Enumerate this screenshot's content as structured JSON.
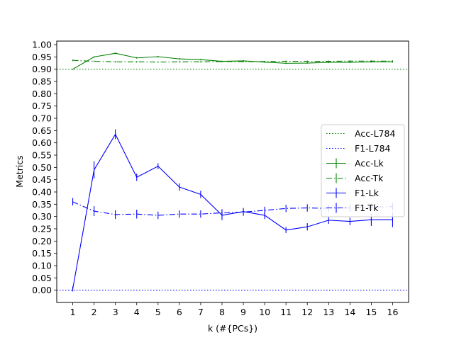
{
  "chart_data": {
    "type": "line",
    "xlabel": "k (#{PCs})",
    "ylabel": "Metrics",
    "x": [
      1,
      2,
      3,
      4,
      5,
      6,
      7,
      8,
      9,
      10,
      11,
      12,
      13,
      14,
      15,
      16
    ],
    "xlim": [
      0.25,
      16.75
    ],
    "ylim": [
      -0.05,
      1.0145
    ],
    "xticks": [
      "1",
      "2",
      "3",
      "4",
      "5",
      "6",
      "7",
      "8",
      "9",
      "10",
      "11",
      "12",
      "13",
      "14",
      "15",
      "16"
    ],
    "yticks": [
      "0.00",
      "0.05",
      "0.10",
      "0.15",
      "0.20",
      "0.25",
      "0.30",
      "0.35",
      "0.40",
      "0.45",
      "0.50",
      "0.55",
      "0.60",
      "0.65",
      "0.70",
      "0.75",
      "0.80",
      "0.85",
      "0.90",
      "0.95",
      "1.00"
    ],
    "grid": false,
    "legend_position": "center-right",
    "hlines": [
      {
        "name": "Acc-L784",
        "y": 0.9,
        "color": "#008000",
        "style": "dotted"
      },
      {
        "name": "F1-L784",
        "y": 0.0,
        "color": "#0000ff",
        "style": "dotted"
      }
    ],
    "series": [
      {
        "name": "Acc-Lk",
        "color": "#008000",
        "style": "solid",
        "values": [
          0.9,
          0.95,
          0.965,
          0.946,
          0.951,
          0.942,
          0.939,
          0.932,
          0.934,
          0.929,
          0.924,
          0.925,
          0.928,
          0.928,
          0.93,
          0.93
        ],
        "err": [
          0.002,
          0.003,
          0.003,
          0.003,
          0.003,
          0.003,
          0.003,
          0.003,
          0.003,
          0.003,
          0.003,
          0.003,
          0.003,
          0.003,
          0.003,
          0.003
        ]
      },
      {
        "name": "Acc-Tk",
        "color": "#008000",
        "style": "dashdot",
        "values": [
          0.936,
          0.932,
          0.93,
          0.93,
          0.929,
          0.93,
          0.93,
          0.931,
          0.931,
          0.931,
          0.932,
          0.932,
          0.932,
          0.933,
          0.933,
          0.933
        ],
        "err": [
          0.003,
          0.003,
          0.003,
          0.003,
          0.003,
          0.003,
          0.003,
          0.003,
          0.003,
          0.003,
          0.003,
          0.003,
          0.003,
          0.003,
          0.003,
          0.003
        ]
      },
      {
        "name": "F1-Lk",
        "color": "#0000ff",
        "style": "solid",
        "values": [
          0.005,
          0.49,
          0.635,
          0.46,
          0.505,
          0.42,
          0.39,
          0.305,
          0.32,
          0.305,
          0.245,
          0.258,
          0.285,
          0.28,
          0.287,
          0.287
        ],
        "err": [
          0.01,
          0.035,
          0.02,
          0.015,
          0.012,
          0.015,
          0.015,
          0.02,
          0.015,
          0.015,
          0.012,
          0.015,
          0.015,
          0.015,
          0.025,
          0.03
        ]
      },
      {
        "name": "F1-Tk",
        "color": "#0000ff",
        "style": "dashdot",
        "values": [
          0.36,
          0.322,
          0.308,
          0.31,
          0.305,
          0.31,
          0.31,
          0.315,
          0.318,
          0.325,
          0.333,
          0.335,
          0.333,
          0.335,
          0.338,
          0.34
        ],
        "err": [
          0.015,
          0.02,
          0.018,
          0.018,
          0.015,
          0.015,
          0.015,
          0.015,
          0.015,
          0.015,
          0.015,
          0.015,
          0.015,
          0.015,
          0.015,
          0.015
        ]
      }
    ]
  }
}
